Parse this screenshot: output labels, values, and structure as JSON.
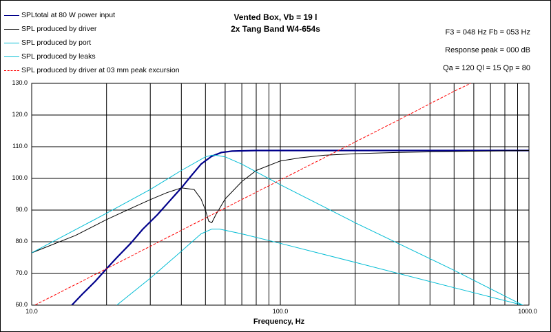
{
  "title": "Vented Box, Vb = 19 l",
  "subtitle": "2x Tang Band W4-654s",
  "info": [
    "F3 = 048 Hz   Fb = 053 Hz",
    "Response peak = 000 dB",
    "Qa = 120  Ql = 15  Qp = 80"
  ],
  "colors": {
    "total": "#00008b",
    "driver": "#000000",
    "port": "#00bcd4",
    "leaks": "#00bcd4",
    "excursion": "#ff0000",
    "grid": "#000000"
  },
  "chart_data": {
    "type": "line",
    "xlabel": "Frequency, Hz",
    "ylabel": "",
    "x_scale": "log",
    "xlim": [
      10,
      1000
    ],
    "ylim": [
      60,
      130
    ],
    "x_ticks": [
      "10.0",
      "100.0",
      "1000.0"
    ],
    "y_ticks": [
      "130.0",
      "120.0",
      "110.0",
      "100.0",
      "90.0",
      "80.0",
      "70.0",
      "60.0"
    ],
    "grid": true,
    "legend_position": "top-left",
    "series": [
      {
        "name": "SPLtotal at 80 W power input",
        "color": "#00008b",
        "x": [
          14.5,
          16,
          18,
          20,
          22,
          25,
          28,
          32,
          36,
          40,
          44,
          48,
          53,
          58,
          64,
          70,
          80,
          100,
          200,
          500,
          1000
        ],
        "y": [
          60,
          63.5,
          67.5,
          71.5,
          75,
          79.5,
          84,
          88.5,
          93,
          97,
          101,
          104.5,
          107,
          108.2,
          108.6,
          108.7,
          108.8,
          108.8,
          108.8,
          108.8,
          108.8
        ]
      },
      {
        "name": "SPL produced by driver",
        "color": "#000000",
        "x": [
          10,
          15,
          20,
          25,
          30,
          35,
          40,
          45,
          48,
          50,
          51.5,
          53,
          55,
          60,
          70,
          80,
          100,
          120,
          150,
          200,
          300,
          500,
          1000
        ],
        "y": [
          76.5,
          82,
          87,
          90.5,
          93.3,
          95.5,
          97,
          96.5,
          93.5,
          90,
          86.5,
          86,
          88.5,
          93.5,
          99,
          102.5,
          105.5,
          106.5,
          107.3,
          107.8,
          108.2,
          108.5,
          108.8
        ]
      },
      {
        "name": "SPL produced by port",
        "color": "#00bcd4",
        "x": [
          10,
          20,
          30,
          40,
          50,
          53,
          55,
          60,
          70,
          100,
          200,
          500,
          1000
        ],
        "y": [
          76.5,
          89,
          96.5,
          102.5,
          106.8,
          107.3,
          107.3,
          106.8,
          104.5,
          98,
          86,
          71,
          59
        ]
      },
      {
        "name": "SPL produced by leaks",
        "color": "#00bcd4",
        "x": [
          22,
          30,
          40,
          48,
          53,
          57,
          70,
          100,
          200,
          500,
          1000
        ],
        "y": [
          60,
          68.5,
          77,
          82.5,
          84,
          84,
          82.5,
          79.5,
          73.5,
          65.5,
          59.5
        ]
      },
      {
        "name": "SPL produced by driver at 03 mm peak excursion",
        "color": "#ff0000",
        "x": [
          10,
          20,
          50,
          100,
          200,
          300,
          500,
          700
        ],
        "y": [
          59.5,
          71.5,
          87.5,
          99.5,
          111.5,
          118.5,
          127.5,
          133
        ]
      }
    ]
  }
}
